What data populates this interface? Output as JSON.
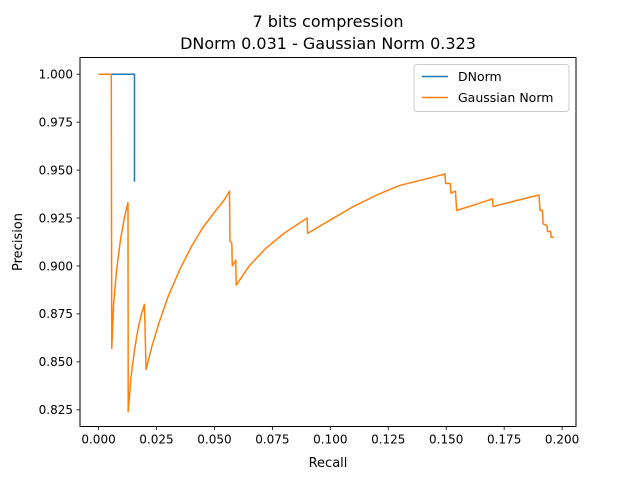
{
  "chart_data": {
    "type": "line",
    "title_line1": "7 bits compression",
    "title_line2": "DNorm 0.031 - Gaussian Norm 0.323",
    "xlabel": "Recall",
    "ylabel": "Precision",
    "xlim": [
      -0.008,
      0.206
    ],
    "ylim": [
      0.8163,
      1.0087
    ],
    "xticks": [
      0.0,
      0.025,
      0.05,
      0.075,
      0.1,
      0.125,
      0.15,
      0.175,
      0.2
    ],
    "xtick_labels": [
      "0.000",
      "0.025",
      "0.050",
      "0.075",
      "0.100",
      "0.125",
      "0.150",
      "0.175",
      "0.200"
    ],
    "yticks": [
      0.825,
      0.85,
      0.875,
      0.9,
      0.925,
      0.95,
      0.975,
      1.0
    ],
    "ytick_labels": [
      "0.825",
      "0.850",
      "0.875",
      "0.900",
      "0.925",
      "0.950",
      "0.975",
      "1.000"
    ],
    "grid": false,
    "legend_position": "top-right",
    "series": [
      {
        "name": "DNorm",
        "color": "#1f77b4",
        "points": [
          [
            0.0,
            1.0
          ],
          [
            0.0155,
            1.0
          ],
          [
            0.0155,
            0.944
          ]
        ]
      },
      {
        "name": "Gaussian Norm",
        "color": "#ff7f0e",
        "points": [
          [
            0.0,
            1.0
          ],
          [
            0.0055,
            1.0
          ],
          [
            0.0057,
            0.857
          ],
          [
            0.0065,
            0.88
          ],
          [
            0.0078,
            0.898
          ],
          [
            0.0095,
            0.914
          ],
          [
            0.0113,
            0.926
          ],
          [
            0.0127,
            0.933
          ],
          [
            0.0128,
            0.824
          ],
          [
            0.014,
            0.842
          ],
          [
            0.0155,
            0.856
          ],
          [
            0.017,
            0.867
          ],
          [
            0.0185,
            0.875
          ],
          [
            0.0198,
            0.88
          ],
          [
            0.0205,
            0.846
          ],
          [
            0.023,
            0.858
          ],
          [
            0.026,
            0.87
          ],
          [
            0.03,
            0.884
          ],
          [
            0.035,
            0.898
          ],
          [
            0.04,
            0.91
          ],
          [
            0.045,
            0.92
          ],
          [
            0.05,
            0.928
          ],
          [
            0.054,
            0.934
          ],
          [
            0.0565,
            0.939
          ],
          [
            0.0567,
            0.913
          ],
          [
            0.0575,
            0.912
          ],
          [
            0.0577,
            0.9
          ],
          [
            0.0592,
            0.903
          ],
          [
            0.0594,
            0.89
          ],
          [
            0.065,
            0.9
          ],
          [
            0.072,
            0.909
          ],
          [
            0.08,
            0.917
          ],
          [
            0.09,
            0.925
          ],
          [
            0.0902,
            0.917
          ],
          [
            0.1,
            0.924
          ],
          [
            0.11,
            0.931
          ],
          [
            0.12,
            0.937
          ],
          [
            0.13,
            0.942
          ],
          [
            0.14,
            0.945
          ],
          [
            0.1495,
            0.948
          ],
          [
            0.1497,
            0.943
          ],
          [
            0.1518,
            0.943
          ],
          [
            0.152,
            0.938
          ],
          [
            0.154,
            0.939
          ],
          [
            0.1545,
            0.929
          ],
          [
            0.16,
            0.931
          ],
          [
            0.165,
            0.933
          ],
          [
            0.17,
            0.935
          ],
          [
            0.1702,
            0.931
          ],
          [
            0.18,
            0.934
          ],
          [
            0.19,
            0.937
          ],
          [
            0.1905,
            0.929
          ],
          [
            0.1915,
            0.929
          ],
          [
            0.1918,
            0.922
          ],
          [
            0.1935,
            0.921
          ],
          [
            0.1937,
            0.918
          ],
          [
            0.195,
            0.918
          ],
          [
            0.1953,
            0.915
          ],
          [
            0.1965,
            0.915
          ]
        ]
      }
    ]
  }
}
